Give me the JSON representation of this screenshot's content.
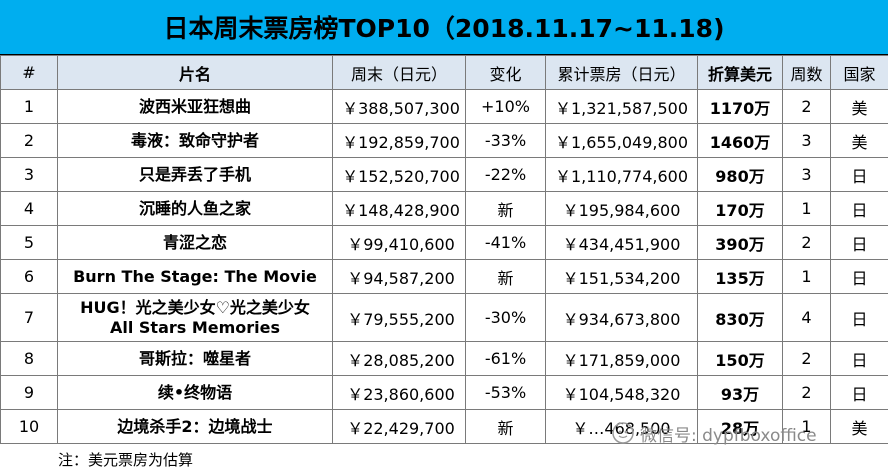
{
  "title": "日本周末票房榜TOP10（2018.11.17~11.18)",
  "headers": {
    "rank": "#",
    "name": "片名",
    "weekend": "周末（日元）",
    "change": "变化",
    "total": "累计票房（日元）",
    "usd": "折算美元",
    "weeks": "周数",
    "country": "国家"
  },
  "rows": [
    {
      "rank": "1",
      "name": "波西米亚狂想曲",
      "weekend": "￥388,507,300",
      "change": "+10%",
      "total": "￥1,321,587,500",
      "usd": "1170万",
      "weeks": "2",
      "country": "美"
    },
    {
      "rank": "2",
      "name": "毒液：致命守护者",
      "weekend": "￥192,859,700",
      "change": "-33%",
      "total": "￥1,655,049,800",
      "usd": "1460万",
      "weeks": "3",
      "country": "美"
    },
    {
      "rank": "3",
      "name": "只是弄丢了手机",
      "weekend": "￥152,520,700",
      "change": "-22%",
      "total": "￥1,110,774,600",
      "usd": "980万",
      "weeks": "3",
      "country": "日"
    },
    {
      "rank": "4",
      "name": "沉睡的人鱼之家",
      "weekend": "￥148,428,900",
      "change": "新",
      "total": "￥195,984,600",
      "usd": "170万",
      "weeks": "1",
      "country": "日"
    },
    {
      "rank": "5",
      "name": "青涩之恋",
      "weekend": "￥99,410,600",
      "change": "-41%",
      "total": "￥434,451,900",
      "usd": "390万",
      "weeks": "2",
      "country": "日"
    },
    {
      "rank": "6",
      "name": "Burn The Stage: The Movie",
      "weekend": "￥94,587,200",
      "change": "新",
      "total": "￥151,534,200",
      "usd": "135万",
      "weeks": "1",
      "country": "日"
    },
    {
      "rank": "7",
      "name_line1": "HUG！光之美少女♡光之美少女",
      "name_line2": "All Stars Memories",
      "weekend": "￥79,555,200",
      "change": "-30%",
      "total": "￥934,673,800",
      "usd": "830万",
      "weeks": "4",
      "country": "日"
    },
    {
      "rank": "8",
      "name": "哥斯拉：噬星者",
      "weekend": "￥28,085,200",
      "change": "-61%",
      "total": "￥171,859,000",
      "usd": "150万",
      "weeks": "2",
      "country": "日"
    },
    {
      "rank": "9",
      "name": "续•终物语",
      "weekend": "￥23,860,600",
      "change": "-53%",
      "total": "￥104,548,320",
      "usd": "93万",
      "weeks": "2",
      "country": "日"
    },
    {
      "rank": "10",
      "name": "边境杀手2：边境战士",
      "weekend": "￥22,429,700",
      "change": "新",
      "total": "￥…468,500",
      "usd": "28万",
      "weeks": "1",
      "country": "美"
    }
  ],
  "footnote": "注：美元票房为估算",
  "watermark": "微信号: dypfboxoffice"
}
